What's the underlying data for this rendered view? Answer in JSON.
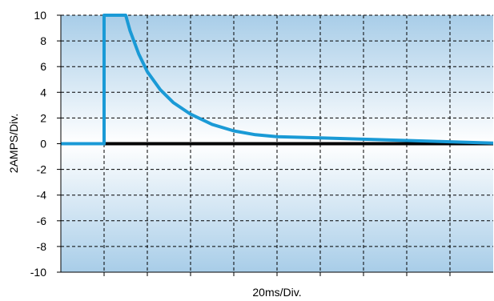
{
  "chart_data": {
    "type": "line",
    "title": "",
    "xlabel": "20ms/Div.",
    "ylabel": "2AMPS/Div.",
    "xlim": [
      0,
      10
    ],
    "ylim": [
      -10,
      10
    ],
    "y_ticks": [
      10,
      8,
      6,
      4,
      2,
      0,
      -2,
      -4,
      -6,
      -8,
      -10
    ],
    "y_tick_labels": [
      "10",
      "8",
      "6",
      "4",
      "2",
      "0",
      "-2",
      "-4",
      "-6",
      "-8",
      "-10"
    ],
    "x_gridlines": [
      1,
      2,
      3,
      4,
      5,
      6,
      7,
      8,
      9
    ],
    "grid": true,
    "series": [
      {
        "color": "#1a9ad6",
        "x": [
          0,
          1.0,
          1.0,
          1.5,
          1.6,
          1.8,
          2.0,
          2.3,
          2.6,
          3.0,
          3.5,
          4.0,
          4.5,
          5.0,
          5.5,
          6.0,
          7.0,
          8.0,
          9.0,
          10.0
        ],
        "y": [
          0,
          0,
          10,
          10,
          8.8,
          7.0,
          5.6,
          4.2,
          3.2,
          2.3,
          1.5,
          1.0,
          0.7,
          0.55,
          0.5,
          0.45,
          0.35,
          0.25,
          0.15,
          0.05
        ]
      }
    ]
  },
  "colors": {
    "background_edge": "#a8cde8",
    "background_center": "#ffffff",
    "line": "#1a9ad6",
    "zero_line": "#000000"
  }
}
